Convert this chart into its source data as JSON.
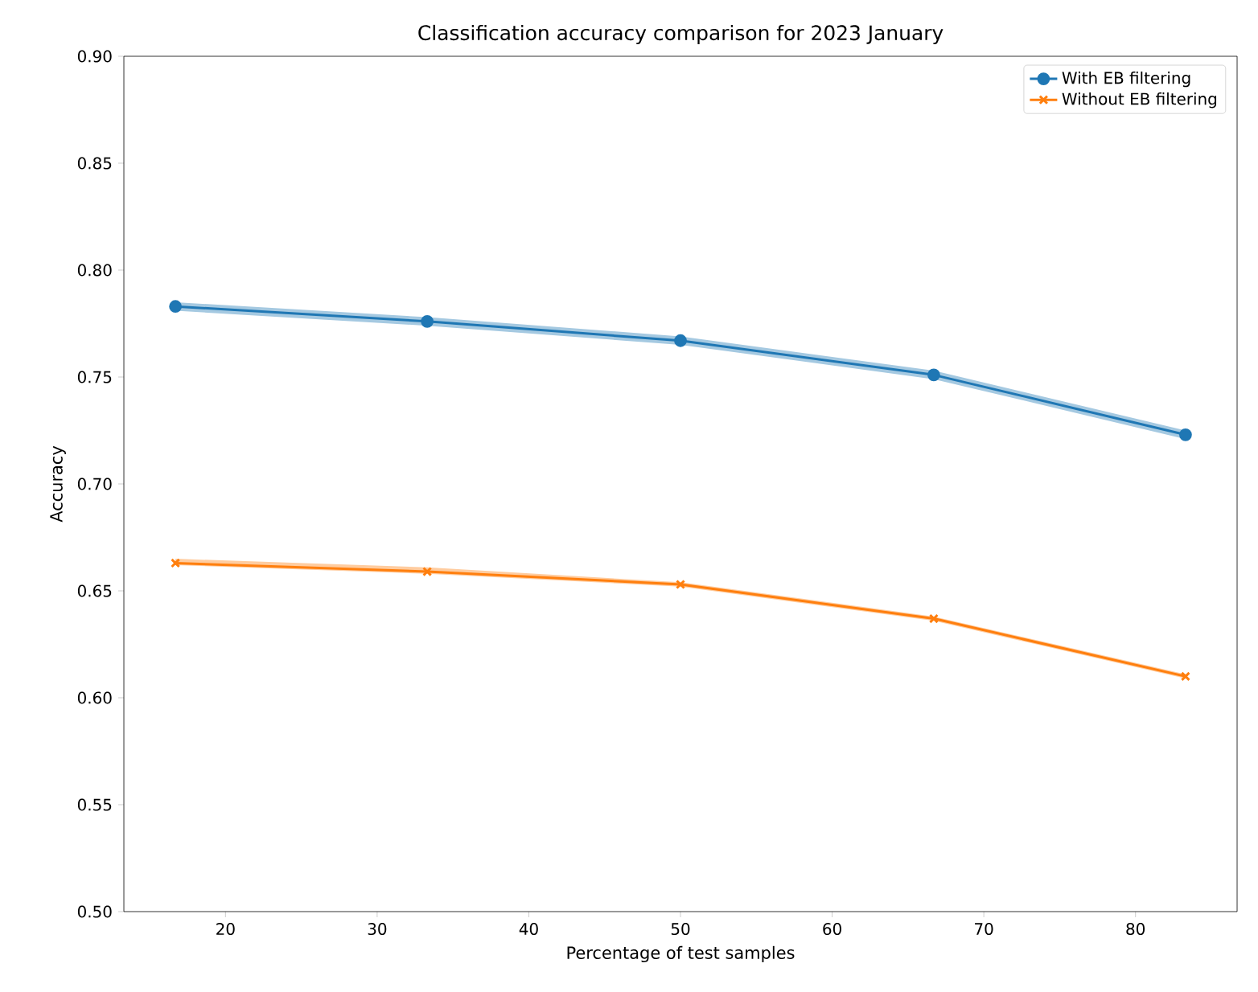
{
  "chart_data": {
    "type": "line",
    "title": "Classification accuracy comparison for 2023 January",
    "xlabel": "Percentage of test samples",
    "ylabel": "Accuracy",
    "x": [
      16.7,
      33.3,
      50,
      66.7,
      83.3
    ],
    "series": [
      {
        "name": "With EB filtering",
        "color": "#1f77b4",
        "marker": "circle",
        "values": [
          0.783,
          0.776,
          0.767,
          0.751,
          0.723
        ],
        "lower": [
          0.781,
          0.774,
          0.765,
          0.749,
          0.721
        ],
        "upper": [
          0.785,
          0.778,
          0.769,
          0.753,
          0.725
        ]
      },
      {
        "name": "Without EB filtering",
        "color": "#ff7f0e",
        "marker": "cross",
        "values": [
          0.663,
          0.659,
          0.653,
          0.637,
          0.61
        ],
        "lower": [
          0.662,
          0.658,
          0.652,
          0.636,
          0.609
        ],
        "upper": [
          0.665,
          0.661,
          0.654,
          0.638,
          0.611
        ]
      }
    ],
    "xlim": [
      13.3,
      86.7
    ],
    "xticks": [
      20,
      30,
      40,
      50,
      60,
      70,
      80
    ],
    "ylim": [
      0.5,
      0.9
    ],
    "yticks": [
      {
        "value": 0.5,
        "label": "0.50"
      },
      0.55,
      {
        "value": 0.6,
        "label": "0.60"
      },
      0.65,
      {
        "value": 0.7,
        "label": "0.70"
      },
      0.75,
      {
        "value": 0.8,
        "label": "0.80"
      },
      0.85,
      {
        "value": 0.9,
        "label": "0.90"
      }
    ],
    "grid": false,
    "legend": "top right",
    "line_style": "solid"
  }
}
